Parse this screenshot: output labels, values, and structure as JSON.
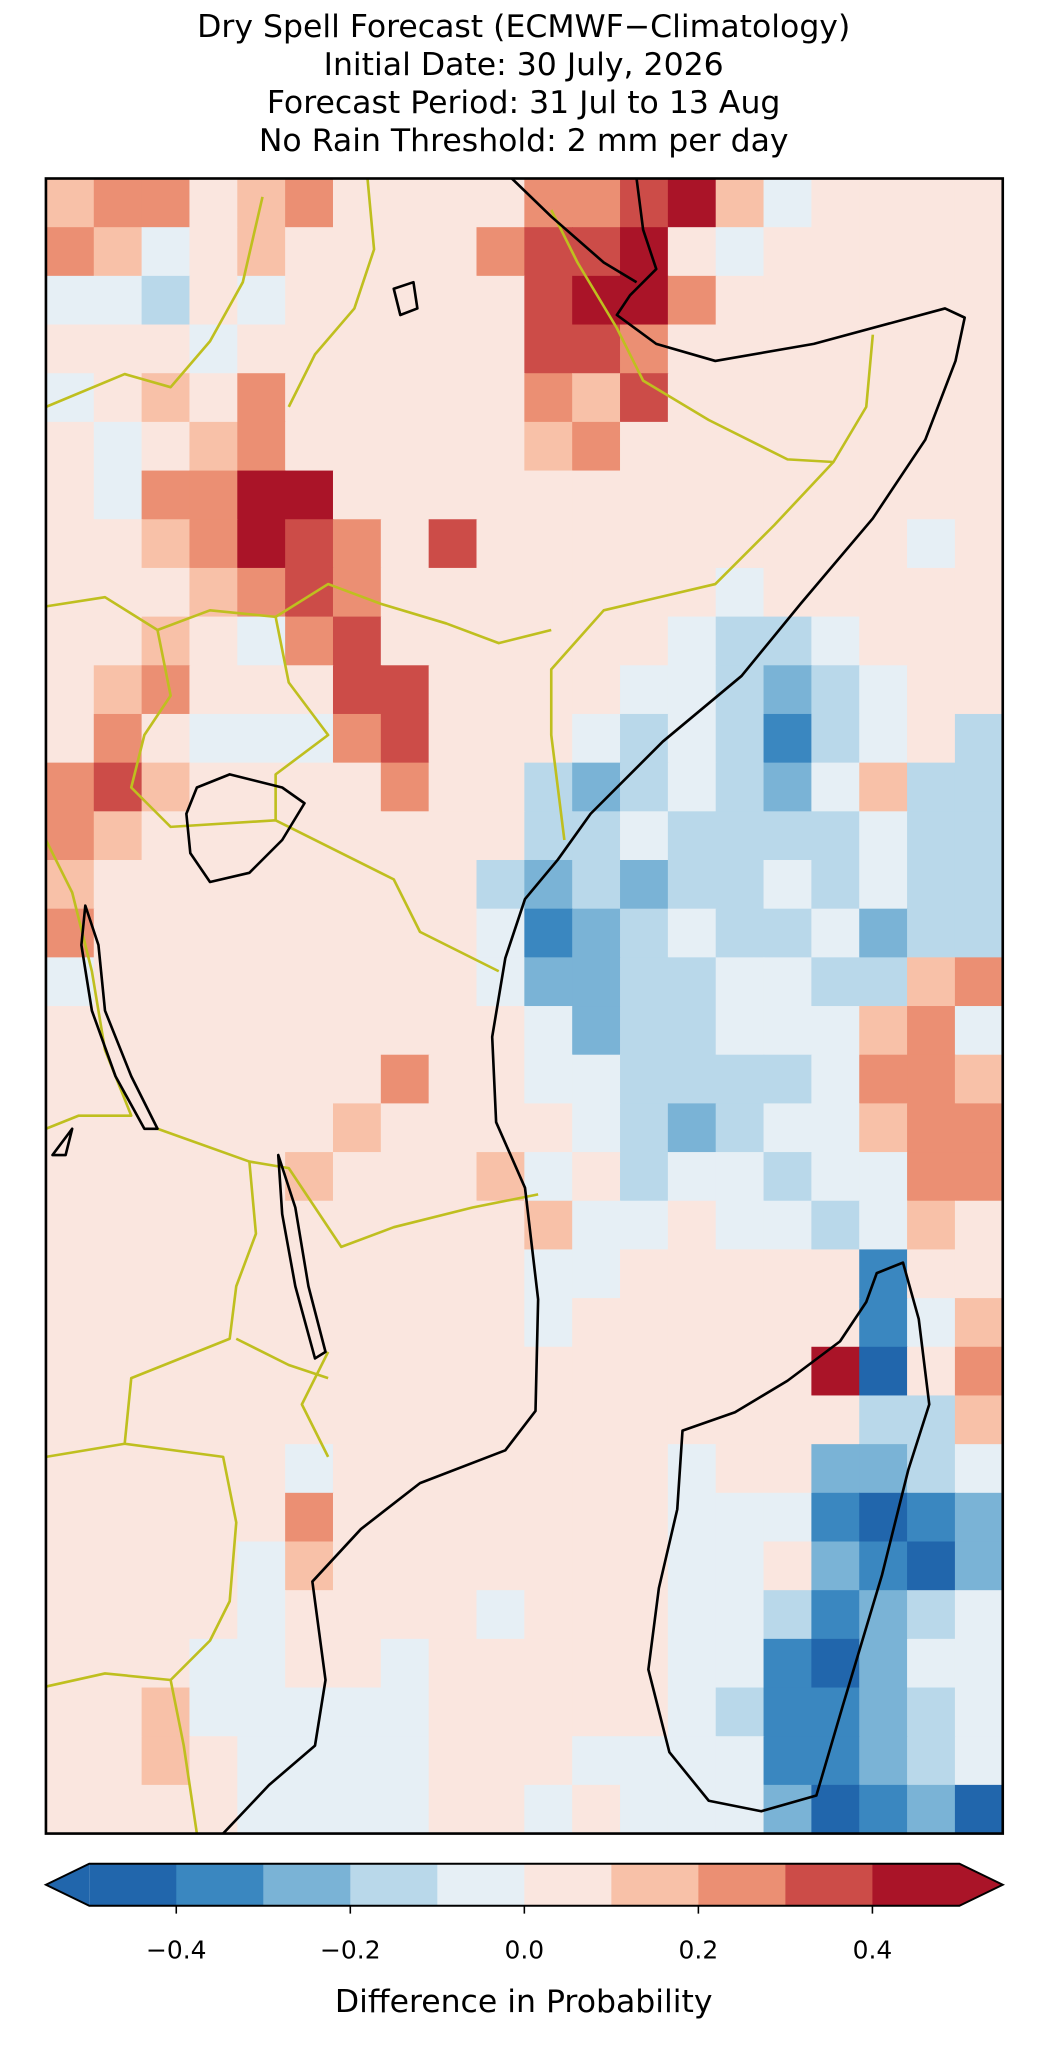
{
  "map": {
    "title_lines": [
      "Dry Spell Forecast (ECMWF−Climatology)",
      "Initial Date: 30 July, 2026",
      "Forecast Period: 31 Jul to 13 Aug",
      "No Rain Threshold: 2 mm per day"
    ],
    "grid": {
      "values": [
        [
          0.15,
          0.25,
          0.25,
          0.05,
          0.15,
          0.25,
          0.05,
          0.05,
          0.05,
          0.05,
          0.25,
          0.25,
          0.35,
          0.45,
          0.15,
          -0.05,
          0.05,
          0.05,
          0.05,
          0.05
        ],
        [
          0.25,
          0.15,
          -0.05,
          0.05,
          0.15,
          0.05,
          0.05,
          0.05,
          0.05,
          0.25,
          0.35,
          0.35,
          0.45,
          0.05,
          -0.05,
          0.05,
          0.05,
          0.05,
          0.05,
          0.05
        ],
        [
          -0.05,
          -0.05,
          -0.15,
          0.05,
          -0.05,
          0.05,
          0.05,
          0.05,
          0.05,
          0.05,
          0.35,
          0.45,
          0.45,
          0.25,
          0.05,
          0.05,
          0.05,
          0.05,
          0.05,
          0.05
        ],
        [
          0.05,
          0.05,
          0.05,
          -0.05,
          0.05,
          0.05,
          0.05,
          0.05,
          0.05,
          0.05,
          0.35,
          0.35,
          0.25,
          0.05,
          0.05,
          0.05,
          0.05,
          0.05,
          0.05,
          0.05
        ],
        [
          -0.05,
          0.05,
          0.15,
          0.05,
          0.25,
          0.05,
          0.05,
          0.05,
          0.05,
          0.05,
          0.25,
          0.15,
          0.35,
          0.05,
          0.05,
          0.05,
          0.05,
          0.05,
          0.05,
          0.05
        ],
        [
          0.05,
          -0.05,
          0.05,
          0.15,
          0.25,
          0.05,
          0.05,
          0.05,
          0.05,
          0.05,
          0.15,
          0.25,
          0.05,
          0.05,
          0.05,
          0.05,
          0.05,
          0.05,
          0.05,
          0.05
        ],
        [
          0.05,
          -0.05,
          0.25,
          0.25,
          0.45,
          0.45,
          0.05,
          0.05,
          0.05,
          0.05,
          0.05,
          0.05,
          0.05,
          0.05,
          0.05,
          0.05,
          0.05,
          0.05,
          0.05,
          0.05
        ],
        [
          0.05,
          0.05,
          0.15,
          0.25,
          0.45,
          0.35,
          0.25,
          0.05,
          0.35,
          0.05,
          0.05,
          0.05,
          0.05,
          0.05,
          0.05,
          0.05,
          0.05,
          0.05,
          -0.05,
          0.05
        ],
        [
          0.05,
          0.05,
          0.05,
          0.15,
          0.25,
          0.35,
          0.25,
          0.05,
          0.05,
          0.05,
          0.05,
          0.05,
          0.05,
          0.05,
          -0.05,
          0.05,
          0.05,
          0.05,
          0.05,
          0.05
        ],
        [
          0.05,
          0.05,
          0.15,
          0.05,
          -0.05,
          0.25,
          0.35,
          0.05,
          0.05,
          0.05,
          0.05,
          0.05,
          0.05,
          -0.05,
          -0.15,
          -0.15,
          -0.05,
          0.05,
          0.05,
          0.05
        ],
        [
          0.05,
          0.15,
          0.25,
          0.05,
          0.05,
          0.05,
          0.35,
          0.35,
          0.05,
          0.05,
          0.05,
          0.05,
          -0.05,
          -0.05,
          -0.15,
          -0.25,
          -0.15,
          -0.05,
          0.05,
          0.05
        ],
        [
          0.05,
          0.25,
          0.05,
          -0.05,
          -0.05,
          -0.05,
          0.25,
          0.35,
          0.05,
          0.05,
          0.05,
          -0.05,
          -0.15,
          -0.05,
          -0.15,
          -0.35,
          -0.15,
          -0.05,
          0.05,
          -0.15
        ],
        [
          0.25,
          0.35,
          0.15,
          0.05,
          0.05,
          0.05,
          0.05,
          0.25,
          0.05,
          0.05,
          -0.15,
          -0.25,
          -0.15,
          -0.05,
          -0.15,
          -0.25,
          -0.05,
          0.15,
          -0.15,
          -0.15
        ],
        [
          0.25,
          0.15,
          0.05,
          0.05,
          0.05,
          0.05,
          0.05,
          0.05,
          0.05,
          0.05,
          -0.15,
          -0.15,
          -0.05,
          -0.15,
          -0.15,
          -0.15,
          -0.15,
          -0.05,
          -0.15,
          -0.15
        ],
        [
          0.15,
          0.05,
          0.05,
          0.05,
          0.05,
          0.05,
          0.05,
          0.05,
          0.05,
          -0.15,
          -0.25,
          -0.15,
          -0.25,
          -0.15,
          -0.15,
          -0.05,
          -0.15,
          -0.05,
          -0.15,
          -0.15
        ],
        [
          0.25,
          0.05,
          0.05,
          0.05,
          0.05,
          0.05,
          0.05,
          0.05,
          0.05,
          -0.05,
          -0.35,
          -0.25,
          -0.15,
          -0.05,
          -0.15,
          -0.15,
          -0.05,
          -0.25,
          -0.15,
          -0.15
        ],
        [
          -0.05,
          0.05,
          0.05,
          0.05,
          0.05,
          0.05,
          0.05,
          0.05,
          0.05,
          -0.05,
          -0.25,
          -0.25,
          -0.15,
          -0.15,
          -0.05,
          -0.05,
          -0.15,
          -0.15,
          0.15,
          0.25
        ],
        [
          0.05,
          0.05,
          0.05,
          0.05,
          0.05,
          0.05,
          0.05,
          0.05,
          0.05,
          0.05,
          -0.05,
          -0.25,
          -0.15,
          -0.15,
          -0.05,
          -0.05,
          -0.05,
          0.15,
          0.25,
          -0.05
        ],
        [
          0.05,
          0.05,
          0.05,
          0.05,
          0.05,
          0.05,
          0.05,
          0.25,
          0.05,
          0.05,
          -0.05,
          -0.05,
          -0.15,
          -0.15,
          -0.15,
          -0.15,
          -0.05,
          0.25,
          0.25,
          0.15
        ],
        [
          0.05,
          0.05,
          0.05,
          0.05,
          0.05,
          0.05,
          0.15,
          0.05,
          0.05,
          0.05,
          0.05,
          -0.05,
          -0.15,
          -0.25,
          -0.15,
          -0.05,
          -0.05,
          0.15,
          0.25,
          0.25
        ],
        [
          0.05,
          0.05,
          0.05,
          0.05,
          0.05,
          0.15,
          0.05,
          0.05,
          0.05,
          0.15,
          -0.05,
          0.05,
          -0.15,
          -0.05,
          -0.05,
          -0.15,
          -0.05,
          -0.05,
          0.25,
          0.25
        ],
        [
          0.05,
          0.05,
          0.05,
          0.05,
          0.05,
          0.05,
          0.05,
          0.05,
          0.05,
          0.05,
          0.15,
          -0.05,
          -0.05,
          0.05,
          -0.05,
          -0.05,
          -0.15,
          -0.05,
          0.15,
          0.05
        ],
        [
          0.05,
          0.05,
          0.05,
          0.05,
          0.05,
          0.05,
          0.05,
          0.05,
          0.05,
          0.05,
          -0.05,
          -0.05,
          0.05,
          0.05,
          0.05,
          0.05,
          0.05,
          -0.35,
          0.05,
          0.05
        ],
        [
          0.05,
          0.05,
          0.05,
          0.05,
          0.05,
          0.05,
          0.05,
          0.05,
          0.05,
          0.05,
          -0.05,
          0.05,
          0.05,
          0.05,
          0.05,
          0.05,
          0.05,
          -0.35,
          -0.05,
          0.15
        ],
        [
          0.05,
          0.05,
          0.05,
          0.05,
          0.05,
          0.05,
          0.05,
          0.05,
          0.05,
          0.05,
          0.05,
          0.05,
          0.05,
          0.05,
          0.05,
          0.05,
          0.45,
          -0.45,
          0.05,
          0.25
        ],
        [
          0.05,
          0.05,
          0.05,
          0.05,
          0.05,
          0.05,
          0.05,
          0.05,
          0.05,
          0.05,
          0.05,
          0.05,
          0.05,
          0.05,
          0.05,
          0.05,
          0.05,
          -0.15,
          -0.15,
          0.15
        ],
        [
          0.05,
          0.05,
          0.05,
          0.05,
          0.05,
          -0.05,
          0.05,
          0.05,
          0.05,
          0.05,
          0.05,
          0.05,
          0.05,
          -0.05,
          0.05,
          0.05,
          -0.25,
          -0.25,
          -0.15,
          -0.05
        ],
        [
          0.05,
          0.05,
          0.05,
          0.05,
          0.05,
          0.25,
          0.05,
          0.05,
          0.05,
          0.05,
          0.05,
          0.05,
          0.05,
          -0.05,
          -0.05,
          -0.05,
          -0.35,
          -0.45,
          -0.35,
          -0.25
        ],
        [
          0.05,
          0.05,
          0.05,
          0.05,
          -0.05,
          0.15,
          0.05,
          0.05,
          0.05,
          0.05,
          0.05,
          0.05,
          0.05,
          -0.05,
          -0.05,
          0.05,
          -0.25,
          -0.35,
          -0.45,
          -0.25
        ],
        [
          0.05,
          0.05,
          0.05,
          0.05,
          -0.05,
          0.05,
          0.05,
          0.05,
          0.05,
          -0.05,
          0.05,
          0.05,
          0.05,
          -0.05,
          -0.05,
          -0.15,
          -0.35,
          -0.25,
          -0.15,
          -0.05
        ],
        [
          0.05,
          0.05,
          0.05,
          -0.05,
          -0.05,
          0.05,
          0.05,
          -0.05,
          0.05,
          0.05,
          0.05,
          0.05,
          0.05,
          -0.05,
          -0.05,
          -0.35,
          -0.45,
          -0.25,
          -0.05,
          -0.05
        ],
        [
          0.05,
          0.05,
          0.15,
          -0.05,
          -0.05,
          -0.05,
          -0.05,
          -0.05,
          0.05,
          0.05,
          0.05,
          0.05,
          0.05,
          -0.05,
          -0.15,
          -0.35,
          -0.35,
          -0.25,
          -0.15,
          -0.05
        ],
        [
          0.05,
          0.05,
          0.15,
          0.05,
          -0.05,
          -0.05,
          -0.05,
          -0.05,
          0.05,
          0.05,
          0.05,
          -0.05,
          -0.05,
          -0.05,
          -0.05,
          -0.35,
          -0.35,
          -0.25,
          -0.15,
          -0.05
        ],
        [
          0.05,
          0.05,
          0.05,
          0.05,
          -0.05,
          -0.05,
          -0.05,
          -0.05,
          0.05,
          0.05,
          -0.05,
          0.05,
          -0.05,
          -0.05,
          -0.05,
          -0.25,
          -0.45,
          -0.35,
          -0.25,
          -0.45
        ]
      ]
    },
    "colorbar": {
      "label": "Difference in Probability",
      "levels": [
        -0.5,
        -0.4,
        -0.3,
        -0.2,
        -0.1,
        0,
        0.1,
        0.2,
        0.3,
        0.4,
        0.5
      ],
      "colors": [
        "#2166ac",
        "#3a87c0",
        "#7ab3d6",
        "#b9d8ea",
        "#e6eff5",
        "#fae6df",
        "#f8c1a8",
        "#eb8f73",
        "#cc4c48",
        "#aa1428"
      ],
      "ticks": [
        {
          "value": -0.4,
          "label": "−0.4"
        },
        {
          "value": -0.2,
          "label": "−0.2"
        },
        {
          "value": 0,
          "label": "0.0"
        },
        0.2,
        0.4
      ]
    }
  }
}
